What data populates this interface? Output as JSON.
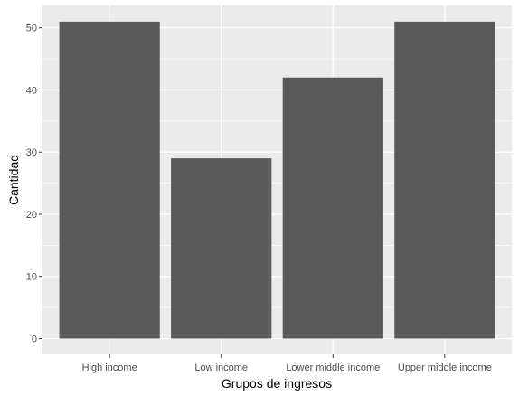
{
  "chart_data": {
    "type": "bar",
    "title": "",
    "xlabel": "Grupos de ingresos",
    "ylabel": "Cantidad",
    "categories": [
      "High income",
      "Low income",
      "Lower middle income",
      "Upper middle income"
    ],
    "values": [
      51,
      29,
      42,
      51
    ],
    "ylim": [
      0,
      53.6
    ],
    "yticks": [
      0,
      10,
      20,
      30,
      40,
      50
    ],
    "ytick_labels": [
      "0",
      "10",
      "20",
      "30",
      "40",
      "50"
    ],
    "grid": true,
    "colors": {
      "bar": "#595959",
      "panel": "#ebebeb",
      "grid": "#ffffff",
      "tick": "#333333"
    }
  }
}
